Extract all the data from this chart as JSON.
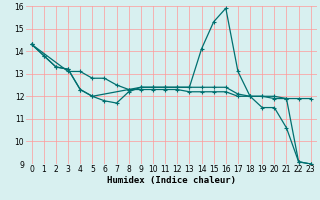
{
  "title": "",
  "xlabel": "Humidex (Indice chaleur)",
  "bg_color": "#d8f0f0",
  "plot_bg_color": "#d8f0f0",
  "line_color": "#007070",
  "grid_color": "#ff9999",
  "xlim": [
    -0.5,
    23.5
  ],
  "ylim": [
    9,
    16
  ],
  "xtick_labels": [
    "0",
    "1",
    "2",
    "3",
    "4",
    "5",
    "6",
    "7",
    "8",
    "9",
    "10",
    "11",
    "12",
    "13",
    "14",
    "15",
    "16",
    "17",
    "18",
    "19",
    "20",
    "21",
    "22",
    "23"
  ],
  "xtick_vals": [
    0,
    1,
    2,
    3,
    4,
    5,
    6,
    7,
    8,
    9,
    10,
    11,
    12,
    13,
    14,
    15,
    16,
    17,
    18,
    19,
    20,
    21,
    22,
    23
  ],
  "ytick_vals": [
    9,
    10,
    11,
    12,
    13,
    14,
    15,
    16
  ],
  "line1_x": [
    0,
    1,
    2,
    3,
    4,
    5,
    6,
    7,
    8,
    9,
    10,
    11,
    12,
    13,
    14,
    15,
    16,
    17,
    18,
    19,
    20,
    21,
    22,
    23
  ],
  "line1_y": [
    14.3,
    13.8,
    13.3,
    13.2,
    12.3,
    12.0,
    11.8,
    11.7,
    12.2,
    12.4,
    12.4,
    12.4,
    12.4,
    12.4,
    14.1,
    15.3,
    15.9,
    13.1,
    12.0,
    11.5,
    11.5,
    10.6,
    9.1,
    9.0
  ],
  "line2_x": [
    0,
    1,
    2,
    3,
    4,
    5,
    8,
    9,
    10,
    11,
    12,
    13,
    14,
    15,
    16,
    17,
    18,
    19,
    20,
    21,
    22,
    23
  ],
  "line2_y": [
    14.3,
    13.8,
    13.3,
    13.2,
    12.3,
    12.0,
    12.3,
    12.4,
    12.4,
    12.4,
    12.4,
    12.4,
    12.4,
    12.4,
    12.4,
    12.1,
    12.0,
    12.0,
    11.9,
    11.9,
    9.1,
    9.0
  ],
  "line3_x": [
    0,
    3,
    4,
    5,
    6,
    7,
    8,
    9,
    10,
    11,
    12,
    13,
    14,
    15,
    16,
    17,
    18,
    19,
    20,
    21,
    22,
    23
  ],
  "line3_y": [
    14.3,
    13.1,
    13.1,
    12.8,
    12.8,
    12.5,
    12.3,
    12.3,
    12.3,
    12.3,
    12.3,
    12.2,
    12.2,
    12.2,
    12.2,
    12.0,
    12.0,
    12.0,
    12.0,
    11.9,
    11.9,
    11.9
  ],
  "xlabel_fontsize": 6.5,
  "tick_fontsize": 5.5,
  "linewidth": 0.9,
  "markersize": 3.5
}
